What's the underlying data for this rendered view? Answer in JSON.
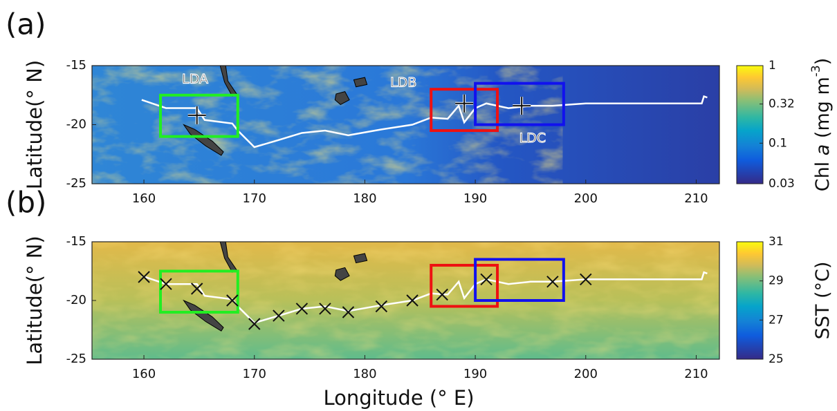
{
  "chart_data": [
    {
      "type": "map",
      "label": "(a)",
      "ylabel": "Latitude(° N)",
      "xlim": [
        155.3,
        212.1
      ],
      "ylim": [
        -25,
        -15
      ],
      "xticks": [
        160,
        170,
        180,
        190,
        200,
        210
      ],
      "yticks": [
        -15,
        -20,
        -25
      ],
      "background": "chl",
      "track": {
        "color": "#ffffff",
        "x": [
          159.8,
          162,
          164.8,
          165.5,
          168,
          168.5,
          170,
          172.2,
          174.3,
          176.4,
          178.5,
          181.5,
          184.3,
          186,
          187.5,
          188.5,
          189,
          190,
          191,
          193,
          195,
          197,
          200,
          210.5,
          210.7,
          211
        ],
        "y": [
          -17.9,
          -18.6,
          -18.6,
          -19.6,
          -19.9,
          -20.5,
          -21.9,
          -21.3,
          -20.7,
          -20.5,
          -20.9,
          -20.4,
          -20,
          -19.4,
          -19.5,
          -18.4,
          -19.8,
          -18.6,
          -18.2,
          -18.6,
          -18.4,
          -18.4,
          -18.2,
          -18.2,
          -17.6,
          -17.7
        ]
      },
      "boxes": [
        {
          "name": "LDA",
          "color": "#22ee22",
          "xlim": [
            161.5,
            168.5
          ],
          "ylim": [
            -21,
            -17.5
          ]
        },
        {
          "name": "LDB",
          "color": "#ee1111",
          "xlim": [
            186,
            192
          ],
          "ylim": [
            -20.5,
            -17
          ]
        },
        {
          "name": "LDC",
          "color": "#1111ee",
          "xlim": [
            190,
            198
          ],
          "ylim": [
            -20,
            -16.5
          ]
        }
      ],
      "markers": {
        "marker": "+",
        "color": "#111111",
        "x": [
          164.8,
          189,
          194.2
        ],
        "y": [
          -19.2,
          -18.2,
          -18.4
        ]
      },
      "colorbar": {
        "label": [
          "Chl ",
          "a",
          " (mg m",
          "-3",
          ")"
        ],
        "log": true,
        "lim": [
          0.03,
          1
        ],
        "ticks": [
          1,
          0.32,
          0.1,
          0.03
        ]
      }
    },
    {
      "type": "map",
      "label": "(b)",
      "ylabel": "Latitude(° N)",
      "xlabel": "Longitude (° E)",
      "xlim": [
        155.3,
        212.1
      ],
      "ylim": [
        -25,
        -15
      ],
      "xticks": [
        160,
        170,
        180,
        190,
        200,
        210
      ],
      "yticks": [
        -15,
        -20,
        -25
      ],
      "background": "sst",
      "track": {
        "color": "#ffffff",
        "x": [
          159.8,
          162,
          164.8,
          165.5,
          168,
          168.5,
          170,
          172.2,
          174.3,
          176.4,
          178.5,
          181.5,
          184.3,
          186,
          187.5,
          188.5,
          189,
          190,
          191,
          193,
          195,
          197,
          200,
          210.5,
          210.7,
          211
        ],
        "y": [
          -17.9,
          -18.6,
          -18.6,
          -19.6,
          -19.9,
          -20.5,
          -21.9,
          -21.3,
          -20.7,
          -20.5,
          -20.9,
          -20.4,
          -20,
          -19.4,
          -19.5,
          -18.4,
          -19.8,
          -18.6,
          -18.2,
          -18.6,
          -18.4,
          -18.4,
          -18.2,
          -18.2,
          -17.6,
          -17.7
        ]
      },
      "boxes": [
        {
          "color": "#22ee22",
          "xlim": [
            161.5,
            168.5
          ],
          "ylim": [
            -21,
            -17.5
          ]
        },
        {
          "color": "#ee1111",
          "xlim": [
            186,
            192
          ],
          "ylim": [
            -20.5,
            -17
          ]
        },
        {
          "color": "#1111ee",
          "xlim": [
            190,
            198
          ],
          "ylim": [
            -20,
            -16.5
          ]
        }
      ],
      "markers": {
        "marker": "x",
        "color": "#111111",
        "x": [
          160,
          162,
          164.8,
          168,
          170,
          172.2,
          174.3,
          176.4,
          178.5,
          181.5,
          184.3,
          187,
          191,
          197,
          200
        ],
        "y": [
          -18,
          -18.6,
          -19,
          -20,
          -22,
          -21.3,
          -20.7,
          -20.7,
          -21,
          -20.5,
          -20,
          -19.5,
          -18.2,
          -18.4,
          -18.2
        ]
      },
      "colorbar": {
        "label": [
          "SST (°C)"
        ],
        "log": false,
        "lim": [
          25,
          31
        ],
        "ticks": [
          31,
          29,
          27,
          25
        ]
      }
    }
  ]
}
